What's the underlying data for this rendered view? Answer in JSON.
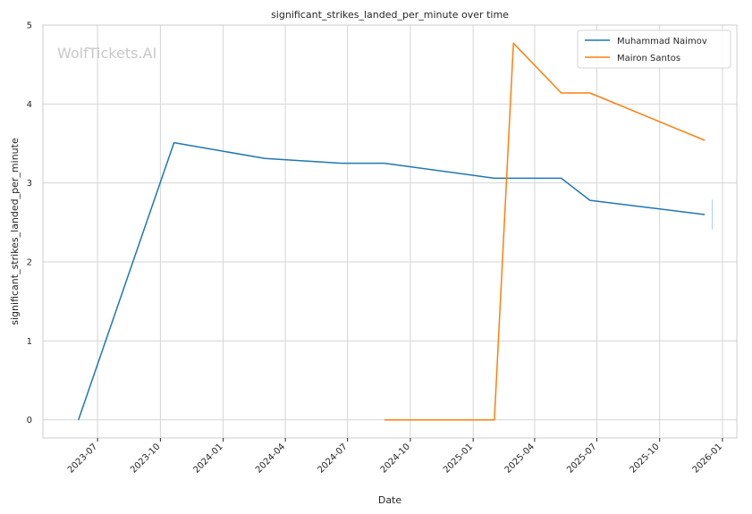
{
  "chart_data": {
    "type": "line",
    "title": "significant_strikes_landed_per_minute over time",
    "xlabel": "Date",
    "ylabel": "significant_strikes_landed_per_minute",
    "watermark": "WolfTickets.AI",
    "ylim": [
      -0.23,
      5
    ],
    "xlim": [
      "2023-04-12",
      "2026-01-22"
    ],
    "yticks": [
      0,
      1,
      2,
      3,
      4,
      5
    ],
    "xticks": [
      "2023-07",
      "2023-10",
      "2024-01",
      "2024-04",
      "2024-07",
      "2024-10",
      "2025-01",
      "2025-04",
      "2025-07",
      "2025-10",
      "2026-01"
    ],
    "grid": true,
    "legend_position": "top-right",
    "series": [
      {
        "name": "Muhammad Naimov",
        "color": "#1f77b4",
        "x": [
          "2023-06-03",
          "2023-10-21",
          "2024-03-02",
          "2024-06-22",
          "2024-08-24",
          "2025-02-01",
          "2025-05-10",
          "2025-06-21",
          "2025-12-06"
        ],
        "values": [
          0,
          3.51,
          3.31,
          3.25,
          3.25,
          3.06,
          3.06,
          2.78,
          2.6
        ]
      },
      {
        "name": "Mairon Santos",
        "color": "#ff7f0e",
        "x": [
          "2024-08-24",
          "2025-02-01",
          "2025-03-01",
          "2025-05-10",
          "2025-06-21",
          "2025-12-06"
        ],
        "values": [
          0,
          0,
          4.77,
          4.14,
          4.14,
          3.54
        ]
      }
    ],
    "error_bar": {
      "x": "2025-12-17",
      "low": 2.41,
      "high": 2.79,
      "color": "#aed0e8"
    }
  }
}
